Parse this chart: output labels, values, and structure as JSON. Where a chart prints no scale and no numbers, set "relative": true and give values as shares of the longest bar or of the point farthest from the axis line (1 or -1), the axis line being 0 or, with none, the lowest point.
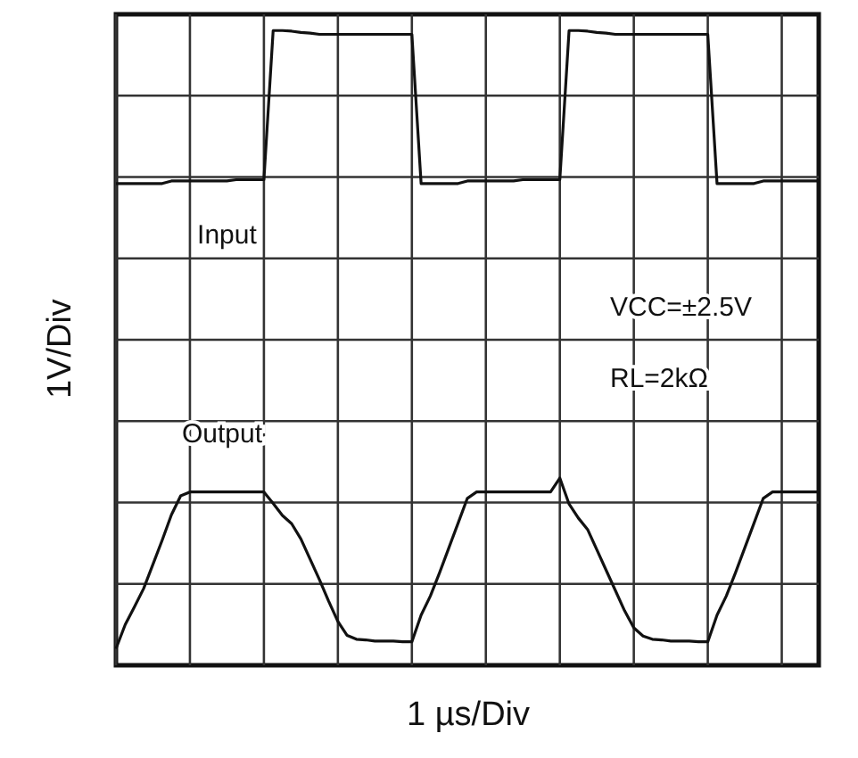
{
  "chart_data": {
    "type": "line",
    "xlabel": "1 µs/Div",
    "ylabel": "1V/Div",
    "relative": true,
    "grid": true,
    "categories": [
      null,
      null,
      null,
      null,
      null,
      null,
      null,
      null,
      null,
      null,
      null,
      null,
      null,
      null,
      null,
      null,
      null,
      null,
      null,
      null,
      null,
      null,
      null,
      null,
      null,
      null,
      null,
      null,
      null,
      null,
      null,
      null,
      null,
      null,
      null,
      null,
      null,
      null,
      null,
      null,
      null,
      null,
      null,
      null,
      null,
      null,
      null,
      null,
      null,
      null,
      null,
      null,
      null,
      null,
      null,
      null,
      null,
      null,
      null,
      null,
      null,
      null,
      null,
      null,
      null,
      null,
      null,
      null,
      null,
      null,
      null,
      null,
      null,
      null,
      null,
      null,
      null
    ],
    "series": [
      {
        "name": "Input",
        "color": "#111111",
        "values": [
          0.759,
          0.759,
          0.759,
          0.759,
          0.759,
          0.759,
          0.763,
          0.763,
          0.763,
          0.763,
          0.763,
          0.763,
          0.763,
          0.765,
          0.765,
          0.765,
          0.765,
          1,
          1,
          0.999,
          0.997,
          0.996,
          0.994,
          0.994,
          0.994,
          0.994,
          0.994,
          0.994,
          0.994,
          0.994,
          0.994,
          0.994,
          0.994,
          0.759,
          0.759,
          0.759,
          0.759,
          0.759,
          0.763,
          0.763,
          0.763,
          0.763,
          0.763,
          0.763,
          0.765,
          0.765,
          0.765,
          0.765,
          0.765,
          1,
          1,
          0.999,
          0.997,
          0.996,
          0.994,
          0.994,
          0.994,
          0.994,
          0.994,
          0.994,
          0.994,
          0.994,
          0.994,
          0.994,
          0.994,
          0.759,
          0.759,
          0.759,
          0.759,
          0.759,
          0.763,
          0.763,
          0.763,
          0.763,
          0.763,
          0.763,
          0.763
        ]
      },
      {
        "name": "Output",
        "color": "#111111",
        "values": [
          0.026,
          0.064,
          0.092,
          0.121,
          0.159,
          0.197,
          0.237,
          0.267,
          0.273,
          0.273,
          0.273,
          0.273,
          0.273,
          0.273,
          0.273,
          0.273,
          0.273,
          0.255,
          0.236,
          0.223,
          0.199,
          0.167,
          0.135,
          0.101,
          0.069,
          0.047,
          0.041,
          0.04,
          0.038,
          0.038,
          0.038,
          0.037,
          0.037,
          0.079,
          0.109,
          0.146,
          0.185,
          0.224,
          0.263,
          0.273,
          0.273,
          0.273,
          0.273,
          0.273,
          0.273,
          0.273,
          0.273,
          0.273,
          0.295,
          0.254,
          0.232,
          0.214,
          0.182,
          0.15,
          0.118,
          0.086,
          0.059,
          0.046,
          0.041,
          0.04,
          0.038,
          0.038,
          0.038,
          0.037,
          0.037,
          0.079,
          0.109,
          0.146,
          0.185,
          0.224,
          0.263,
          0.273,
          0.273,
          0.273,
          0.273,
          0.273,
          0.273
        ]
      }
    ],
    "annotations": [
      "VCC=±2.5V",
      "RL=2kΩ"
    ]
  }
}
